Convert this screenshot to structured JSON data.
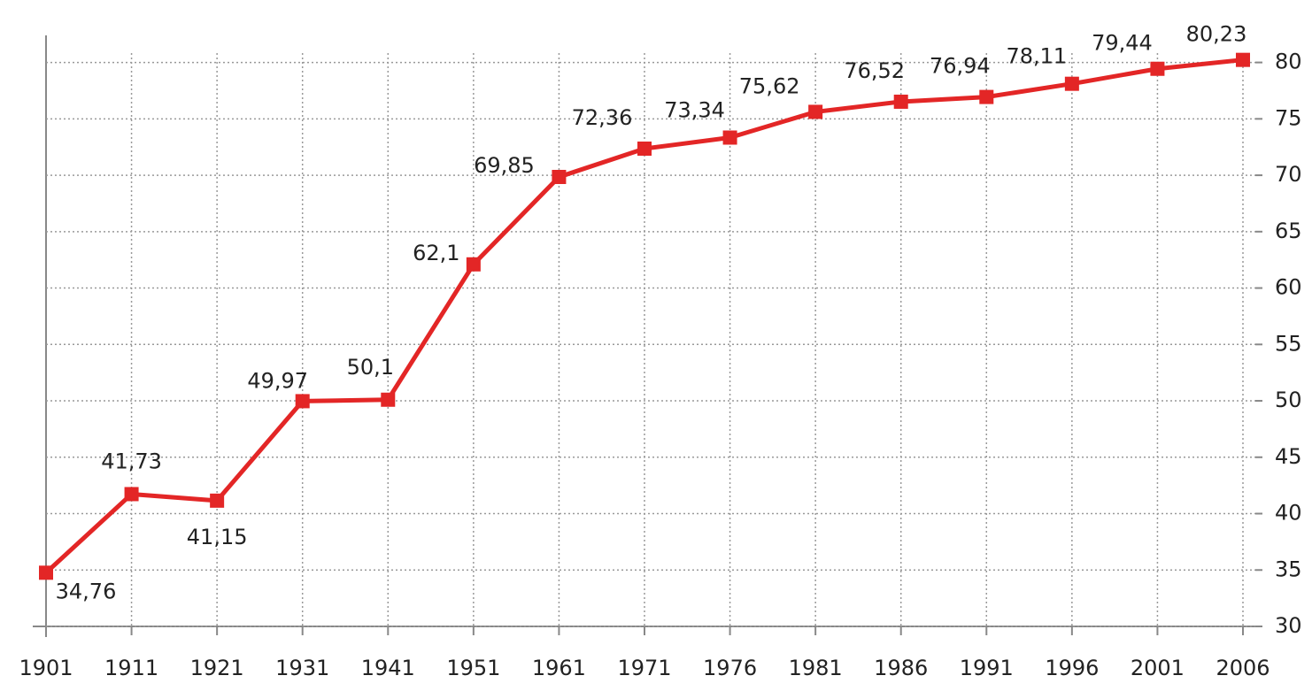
{
  "chart_data": {
    "type": "line",
    "categories": [
      "1901",
      "1911",
      "1921",
      "1931",
      "1941",
      "1951",
      "1961",
      "1971",
      "1976",
      "1981",
      "1986",
      "1991",
      "1996",
      "2001",
      "2006"
    ],
    "series": [
      {
        "color": "#e32626",
        "values": [
          34.76,
          41.73,
          41.15,
          49.97,
          50.1,
          62.1,
          69.85,
          72.36,
          73.34,
          75.62,
          76.52,
          76.94,
          78.11,
          79.44,
          80.23
        ],
        "value_labels": [
          "34,76",
          "41,73",
          "41,15",
          "49,97",
          "50,1",
          "62,1",
          "69,85",
          "72,36",
          "73,34",
          "75,62",
          "76,52",
          "76,94",
          "78,11",
          "79,44",
          "80,23"
        ]
      }
    ],
    "ylim": [
      30,
      82.4
    ],
    "yticks": [
      30,
      35,
      40,
      45,
      50,
      55,
      60,
      65,
      70,
      75,
      80
    ],
    "grid": true
  }
}
